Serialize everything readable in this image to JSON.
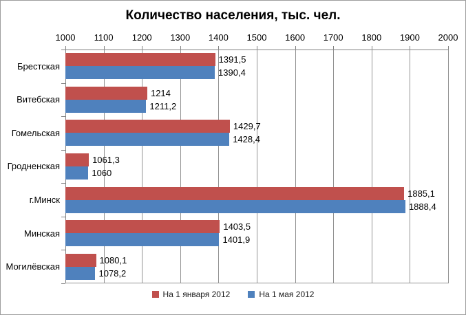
{
  "chart_data": {
    "type": "bar",
    "orientation": "horizontal",
    "title": "Количество населения, тыс. чел.",
    "categories": [
      "Брестская",
      "Витебская",
      "Гомельская",
      "Гродненская",
      "г.Минск",
      "Минская",
      "Могилёвская"
    ],
    "series": [
      {
        "name": "На 1 января 2012",
        "color": "#C0504D",
        "values": [
          1391.5,
          1214,
          1429.7,
          1061.3,
          1885.1,
          1403.5,
          1080.1
        ],
        "labels": [
          "1391,5",
          "1214",
          "1429,7",
          "1061,3",
          "1885,1",
          "1403,5",
          "1080,1"
        ]
      },
      {
        "name": "На 1 мая 2012",
        "color": "#4F81BD",
        "values": [
          1390.4,
          1211.2,
          1428.4,
          1060,
          1888.4,
          1401.9,
          1078.2
        ],
        "labels": [
          "1390,4",
          "1211,2",
          "1428,4",
          "1060",
          "1888,4",
          "1401,9",
          "1078,2"
        ]
      }
    ],
    "xlim": [
      1000,
      2000
    ],
    "x_ticks": [
      "1000",
      "1100",
      "1200",
      "1300",
      "1400",
      "1500",
      "1600",
      "1700",
      "1800",
      "1900",
      "2000"
    ],
    "grid": true,
    "legend_position": "bottom",
    "colors": {
      "gridline": "#919191",
      "axis": "#7f7f7f",
      "background": "#ffffff",
      "text": "#000000"
    }
  }
}
